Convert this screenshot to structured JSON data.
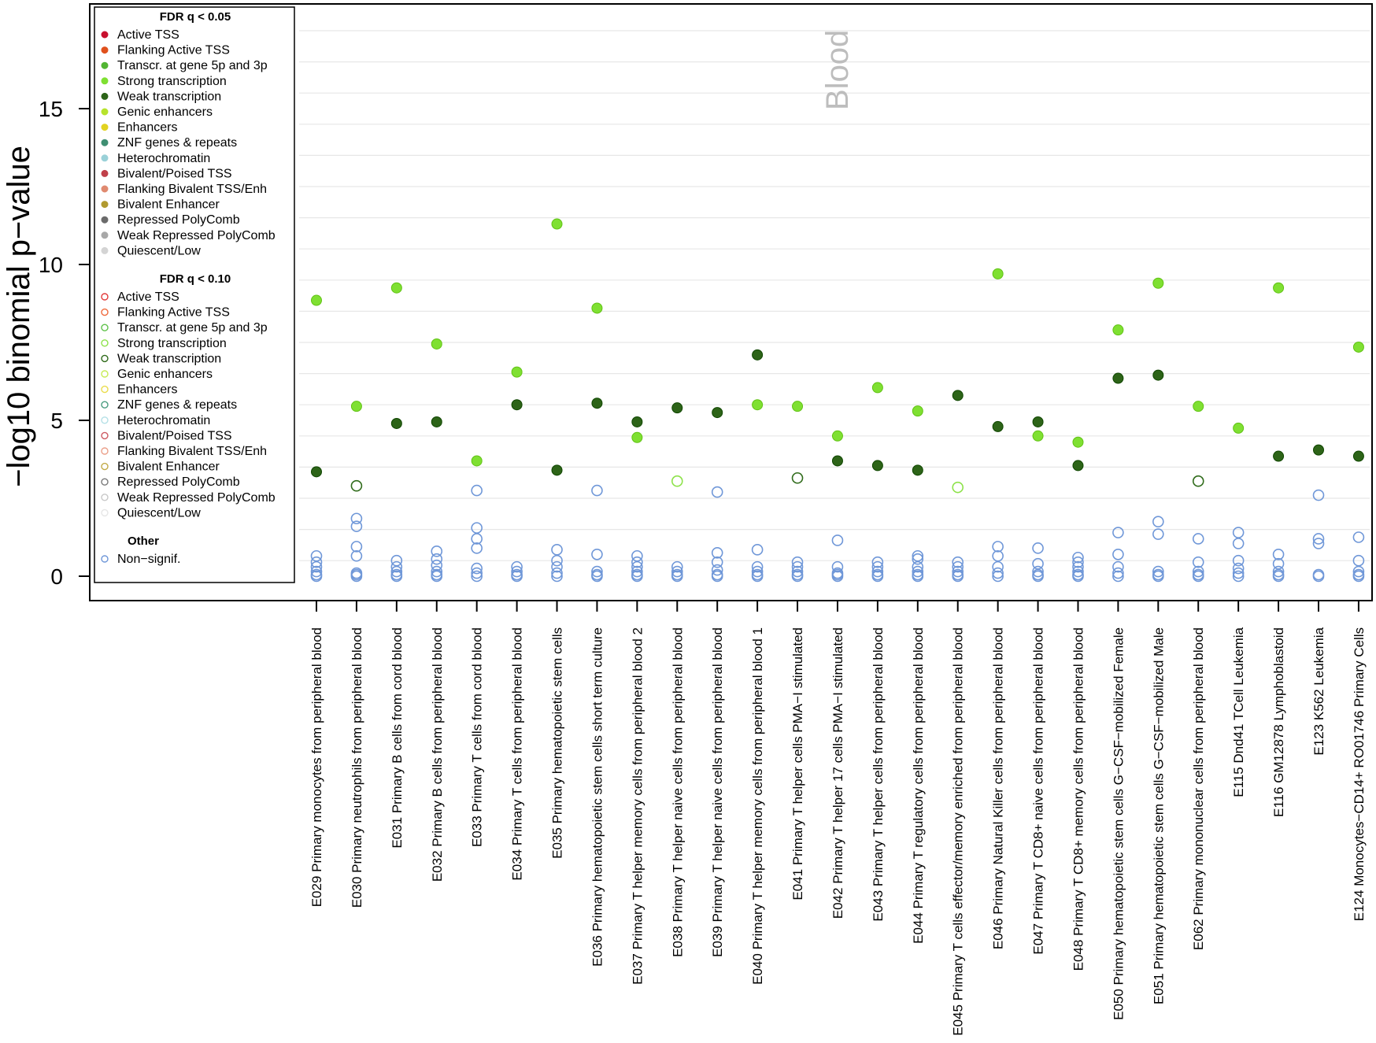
{
  "chart_data": {
    "type": "scatter",
    "panel_label": "Blood",
    "ylabel": "−log10 binomial p−value",
    "ylim": [
      0,
      17.5
    ],
    "yticks": [
      0,
      5,
      10,
      15
    ],
    "grid": true,
    "legend_position": "top-left",
    "colors": {
      "strong": "#7fe032",
      "weak": "#2d6418",
      "nonsig": "#6f97d8",
      "strong_open": "#8de24a",
      "weak_open": "#2f6b1a"
    },
    "categories": [
      "E029 Primary monocytes from peripheral blood",
      "E030 Primary neutrophils from peripheral blood",
      "E031 Primary B cells from cord blood",
      "E032 Primary B cells from peripheral blood",
      "E033 Primary T cells from cord blood",
      "E034 Primary T cells from peripheral blood",
      "E035 Primary hematopoietic stem cells",
      "E036 Primary hematopoietic stem cells short term culture",
      "E037 Primary T helper memory cells from peripheral blood 2",
      "E038 Primary T helper naive cells from peripheral blood",
      "E039 Primary T helper naive cells from peripheral blood",
      "E040 Primary T helper memory cells from peripheral blood 1",
      "E041 Primary T helper cells PMA−I stimulated",
      "E042 Primary T helper 17 cells PMA−I stimulated",
      "E043 Primary T helper cells from peripheral blood",
      "E044 Primary T regulatory cells from peripheral blood",
      "E045 Primary T cells effector/memory enriched from peripheral blood",
      "E046 Primary Natural Killer cells from peripheral blood",
      "E047 Primary T CD8+ naive cells from peripheral blood",
      "E048 Primary T CD8+ memory cells from peripheral blood",
      "E050 Primary hematopoietic stem cells G−CSF−mobilized Female",
      "E051 Primary hematopoietic stem cells G−CSF−mobilized Male",
      "E062 Primary mononuclear cells from peripheral blood",
      "E115 Dnd41 TCell Leukemia",
      "E116 GM12878 Lymphoblastoid",
      "E123 K562 Leukemia",
      "E124 Monocytes−CD14+ RO01746 Primary Cells"
    ],
    "series": [
      {
        "name": "Strong transcription",
        "fdr": "q < 0.05",
        "marker": "filled",
        "color": "#7fe032",
        "values": [
          8.85,
          5.45,
          9.25,
          7.45,
          3.7,
          6.55,
          11.3,
          8.6,
          4.45,
          null,
          null,
          5.5,
          5.45,
          4.5,
          6.05,
          5.3,
          null,
          9.7,
          4.5,
          4.3,
          7.9,
          9.4,
          5.45,
          4.75,
          9.25,
          null,
          7.35
        ]
      },
      {
        "name": "Weak transcription",
        "fdr": "q < 0.05",
        "marker": "filled",
        "color": "#2d6418",
        "values": [
          3.35,
          null,
          4.9,
          4.95,
          null,
          5.5,
          3.4,
          5.55,
          4.95,
          5.4,
          5.25,
          7.1,
          null,
          3.7,
          3.55,
          3.4,
          5.8,
          4.8,
          4.95,
          3.55,
          6.35,
          6.45,
          null,
          null,
          3.85,
          4.05,
          3.85
        ]
      },
      {
        "name": "Strong transcription",
        "fdr": "q < 0.10",
        "marker": "open",
        "color": "#8de24a",
        "values": [
          null,
          null,
          null,
          null,
          null,
          null,
          null,
          null,
          null,
          3.05,
          null,
          null,
          null,
          null,
          null,
          null,
          2.85,
          null,
          null,
          null,
          null,
          null,
          null,
          null,
          null,
          null,
          null
        ]
      },
      {
        "name": "Weak transcription",
        "fdr": "q < 0.10",
        "marker": "open",
        "color": "#2f6b1a",
        "values": [
          null,
          2.9,
          null,
          null,
          null,
          null,
          null,
          null,
          null,
          null,
          null,
          null,
          3.15,
          null,
          null,
          null,
          null,
          null,
          null,
          null,
          null,
          null,
          3.05,
          null,
          null,
          null,
          null
        ]
      },
      {
        "name": "Non−signif.",
        "fdr": "Other",
        "marker": "open",
        "color": "#6f97d8",
        "values": [
          [
            0,
            0.05,
            0.15,
            0.3,
            0.45,
            0.65
          ],
          [
            0,
            0.05,
            0.1,
            0.65,
            0.95,
            1.6,
            1.85
          ],
          [
            0,
            0.05,
            0.15,
            0.3,
            0.5
          ],
          [
            0,
            0.05,
            0.15,
            0.35,
            0.55,
            0.8
          ],
          [
            0,
            0.1,
            0.25,
            0.9,
            1.2,
            1.55,
            2.75
          ],
          [
            0,
            0.05,
            0.15,
            0.3
          ],
          [
            0,
            0.1,
            0.3,
            0.5,
            0.85
          ],
          [
            0,
            0.05,
            0.15,
            0.7,
            2.75
          ],
          [
            0,
            0.05,
            0.15,
            0.3,
            0.45,
            0.65
          ],
          [
            0,
            0.05,
            0.15,
            0.3
          ],
          [
            0,
            0.05,
            0.2,
            0.45,
            0.75,
            2.7
          ],
          [
            0,
            0.05,
            0.15,
            0.3,
            0.85
          ],
          [
            0,
            0.05,
            0.15,
            0.3,
            0.45
          ],
          [
            0,
            0.05,
            0.1,
            0.3,
            1.15
          ],
          [
            0,
            0.05,
            0.15,
            0.3,
            0.45
          ],
          [
            0,
            0.05,
            0.15,
            0.3,
            0.55,
            0.65
          ],
          [
            0,
            0.05,
            0.15,
            0.3,
            0.45
          ],
          [
            0,
            0.1,
            0.3,
            0.65,
            0.95
          ],
          [
            0,
            0.05,
            0.15,
            0.4,
            0.9
          ],
          [
            0,
            0.05,
            0.15,
            0.3,
            0.45,
            0.6
          ],
          [
            0,
            0.1,
            0.3,
            0.7,
            1.4
          ],
          [
            0,
            0.05,
            0.15,
            1.35,
            1.75
          ],
          [
            0,
            0.05,
            0.15,
            0.45,
            1.2
          ],
          [
            0,
            0.1,
            0.25,
            0.5,
            1.05,
            1.4
          ],
          [
            0,
            0.05,
            0.15,
            0.4,
            0.7
          ],
          [
            0,
            0.05,
            1.05,
            1.2,
            2.6
          ],
          [
            0,
            0.05,
            0.15,
            0.5,
            1.25
          ]
        ]
      }
    ],
    "legend": {
      "sections": [
        {
          "title": "FDR q < 0.05",
          "marker": "filled",
          "items": [
            {
              "label": "Active TSS",
              "color": "#c8102e"
            },
            {
              "label": "Flanking Active TSS",
              "color": "#e0511d"
            },
            {
              "label": "Transcr. at gene 5p and 3p",
              "color": "#52b533"
            },
            {
              "label": "Strong transcription",
              "color": "#7fe032"
            },
            {
              "label": "Weak transcription",
              "color": "#2d6418"
            },
            {
              "label": "Genic enhancers",
              "color": "#b7e32c"
            },
            {
              "label": "Enhancers",
              "color": "#e2d321"
            },
            {
              "label": "ZNF genes & repeats",
              "color": "#3f8f72"
            },
            {
              "label": "Heterochromatin",
              "color": "#9ad1d8"
            },
            {
              "label": "Bivalent/Poised TSS",
              "color": "#c0404a"
            },
            {
              "label": "Flanking Bivalent TSS/Enh",
              "color": "#e08a70"
            },
            {
              "label": "Bivalent Enhancer",
              "color": "#b19a30"
            },
            {
              "label": "Repressed PolyComb",
              "color": "#6b6b6b"
            },
            {
              "label": "Weak Repressed PolyComb",
              "color": "#a8a8a8"
            },
            {
              "label": "Quiescent/Low",
              "color": "#d4d4d4"
            }
          ]
        },
        {
          "title": "FDR q < 0.10",
          "marker": "open",
          "items": [
            {
              "label": "Active TSS",
              "color": "#e23a3a"
            },
            {
              "label": "Flanking Active TSS",
              "color": "#ef6a3c"
            },
            {
              "label": "Transcr. at gene 5p and 3p",
              "color": "#5fc24a"
            },
            {
              "label": "Strong transcription",
              "color": "#8de24a"
            },
            {
              "label": "Weak transcription",
              "color": "#2f6b1a"
            },
            {
              "label": "Genic enhancers",
              "color": "#c7eb55"
            },
            {
              "label": "Enhancers",
              "color": "#eadc4c"
            },
            {
              "label": "ZNF genes & repeats",
              "color": "#4a9c7f"
            },
            {
              "label": "Heterochromatin",
              "color": "#b4e0e6"
            },
            {
              "label": "Bivalent/Poised TSS",
              "color": "#cd5a62"
            },
            {
              "label": "Flanking Bivalent TSS/Enh",
              "color": "#eba08a"
            },
            {
              "label": "Bivalent Enhancer",
              "color": "#c2aa48"
            },
            {
              "label": "Repressed PolyComb",
              "color": "#7a7a7a"
            },
            {
              "label": "Weak Repressed PolyComb",
              "color": "#c8c8c8"
            },
            {
              "label": "Quiescent/Low",
              "color": "#e6e6e6"
            }
          ]
        },
        {
          "title": "Other",
          "marker": "open",
          "items": [
            {
              "label": "Non−signif.",
              "color": "#6f97d8"
            }
          ]
        }
      ]
    }
  }
}
